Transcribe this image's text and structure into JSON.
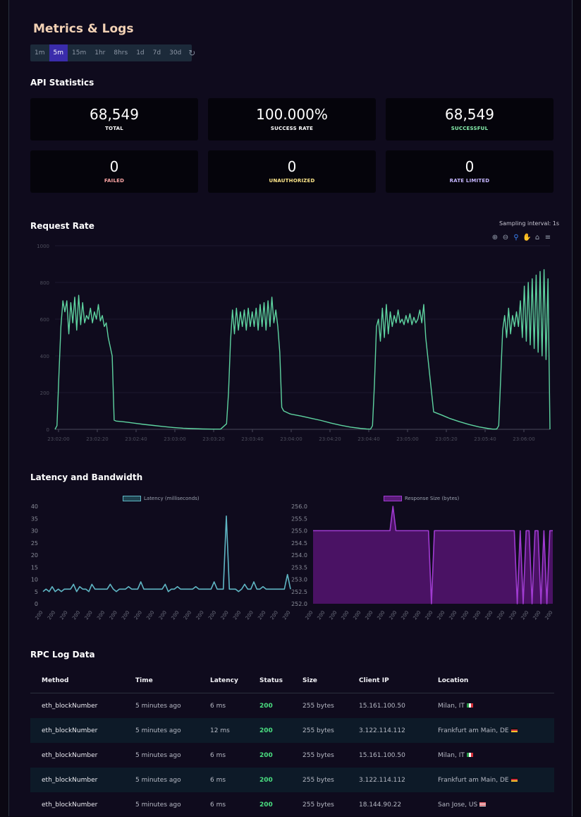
{
  "page": {
    "title": "Metrics & Logs"
  },
  "time_ranges": {
    "items": [
      "1m",
      "5m",
      "15m",
      "1hr",
      "8hrs",
      "1d",
      "7d",
      "30d"
    ],
    "selected": "5m"
  },
  "api_statistics": {
    "title": "API Statistics",
    "cards": [
      {
        "value": "68,549",
        "label": "TOTAL",
        "color": "#ffffff"
      },
      {
        "value": "100.000%",
        "label": "SUCCESS RATE",
        "color": "#ffffff"
      },
      {
        "value": "68,549",
        "label": "SUCCESSFUL",
        "color": "#86efac"
      },
      {
        "value": "0",
        "label": "FAILED",
        "color": "#fca5a5"
      },
      {
        "value": "0",
        "label": "UNAUTHORIZED",
        "color": "#fde68a"
      },
      {
        "value": "0",
        "label": "RATE LIMITED",
        "color": "#c4b5fd"
      }
    ]
  },
  "request_rate": {
    "title": "Request Rate",
    "sampling": "Sampling interval: 1s",
    "tools": [
      "zoom-in-icon",
      "zoom-out-icon",
      "zoom-select-icon",
      "pan-hand-icon",
      "home-icon",
      "menu-icon"
    ]
  },
  "latency_section": {
    "title": "Latency and Bandwidth"
  },
  "rpc_logs": {
    "title": "RPC Log Data",
    "columns": [
      "Method",
      "Time",
      "Latency",
      "Status",
      "Size",
      "Client IP",
      "Location"
    ],
    "rows": [
      {
        "method": "eth_blockNumber",
        "time": "5 minutes ago",
        "latency": "6 ms",
        "status": "200",
        "size": "255 bytes",
        "ip": "15.161.100.50",
        "location": "Milan, IT",
        "flag": "it"
      },
      {
        "method": "eth_blockNumber",
        "time": "5 minutes ago",
        "latency": "12 ms",
        "status": "200",
        "size": "255 bytes",
        "ip": "3.122.114.112",
        "location": "Frankfurt am Main, DE",
        "flag": "de"
      },
      {
        "method": "eth_blockNumber",
        "time": "5 minutes ago",
        "latency": "6 ms",
        "status": "200",
        "size": "255 bytes",
        "ip": "15.161.100.50",
        "location": "Milan, IT",
        "flag": "it"
      },
      {
        "method": "eth_blockNumber",
        "time": "5 minutes ago",
        "latency": "6 ms",
        "status": "200",
        "size": "255 bytes",
        "ip": "3.122.114.112",
        "location": "Frankfurt am Main, DE",
        "flag": "de"
      },
      {
        "method": "eth_blockNumber",
        "time": "5 minutes ago",
        "latency": "6 ms",
        "status": "200",
        "size": "255 bytes",
        "ip": "18.144.90.22",
        "location": "San Jose, US",
        "flag": "us"
      }
    ]
  },
  "chart_data": [
    {
      "type": "line",
      "title": "Request Rate",
      "ylim": [
        0,
        1000
      ],
      "yticks": [
        0,
        200,
        400,
        600,
        800,
        1000
      ],
      "xticks": [
        "23:02:00",
        "23:02:20",
        "23:02:40",
        "23:03:00",
        "23:03:20",
        "23:03:40",
        "23:04:00",
        "23:04:20",
        "23:04:40",
        "23:05:00",
        "23:05:20",
        "23:05:40",
        "23:06:00"
      ],
      "color": "#5ed3a0",
      "series": [
        {
          "x": [
            0,
            1,
            2,
            3,
            4,
            5,
            6,
            7,
            8,
            9,
            10,
            11,
            12,
            13,
            14,
            15,
            16,
            17,
            18,
            19,
            20,
            21,
            22,
            23,
            24,
            25,
            26,
            27,
            28,
            29,
            30,
            31,
            32,
            34,
            37,
            40,
            45,
            50,
            55,
            60,
            65,
            70,
            75,
            80,
            84,
            87,
            88,
            89,
            90,
            91,
            92,
            93,
            94,
            95,
            96,
            97,
            98,
            99,
            100,
            101,
            102,
            103,
            104,
            105,
            106,
            107,
            108,
            109,
            110,
            111,
            112,
            113,
            114,
            115,
            116,
            117,
            118,
            119,
            120,
            121,
            125,
            130,
            135,
            140,
            145,
            150,
            155,
            158,
            160,
            161,
            162,
            163,
            164,
            165,
            166,
            167,
            168,
            169,
            170,
            171,
            172,
            173,
            174,
            175,
            176,
            177,
            178,
            179,
            180,
            181,
            182,
            183,
            184,
            185,
            186,
            187,
            188,
            192,
            196,
            200,
            205,
            210,
            215,
            220,
            222,
            223,
            224,
            225,
            226,
            227,
            228,
            229,
            230,
            231,
            232,
            233,
            234,
            235,
            236,
            237,
            238,
            239,
            240,
            241,
            242,
            243,
            244,
            245,
            246,
            247,
            248,
            249,
            250,
            251
          ],
          "y": [
            0,
            20,
            300,
            560,
            700,
            640,
            700,
            520,
            690,
            580,
            720,
            540,
            730,
            570,
            690,
            580,
            620,
            600,
            660,
            580,
            640,
            600,
            680,
            590,
            620,
            560,
            580,
            500,
            450,
            400,
            50,
            45,
            44,
            42,
            38,
            34,
            27,
            21,
            15,
            10,
            6,
            4,
            2,
            1,
            1,
            30,
            200,
            480,
            650,
            520,
            660,
            540,
            640,
            560,
            650,
            540,
            660,
            560,
            640,
            560,
            660,
            540,
            680,
            560,
            690,
            540,
            700,
            560,
            720,
            580,
            650,
            560,
            420,
            120,
            100,
            95,
            90,
            85,
            82,
            80,
            72,
            60,
            48,
            34,
            22,
            12,
            5,
            2,
            1,
            20,
            250,
            560,
            600,
            480,
            660,
            500,
            680,
            520,
            640,
            560,
            620,
            580,
            650,
            580,
            600,
            570,
            620,
            580,
            630,
            570,
            610,
            580,
            600,
            650,
            580,
            680,
            500,
            95,
            78,
            60,
            42,
            26,
            13,
            4,
            1,
            1,
            2,
            20,
            280,
            540,
            620,
            500,
            660,
            520,
            620,
            560,
            640,
            560,
            700,
            500,
            780,
            480,
            800,
            460,
            820,
            440,
            840,
            420,
            860,
            400,
            870,
            380,
            820,
            0
          ]
        }
      ]
    },
    {
      "type": "area",
      "series_name": "Latency (milliseconds)",
      "ylim": [
        0,
        40
      ],
      "yticks": [
        0,
        5,
        10,
        15,
        20,
        25,
        30,
        35,
        40
      ],
      "xtick_label": "200",
      "xtick_count": 21,
      "color": "#5fb6c4",
      "values": [
        5,
        6,
        5,
        7,
        5,
        6,
        5,
        6,
        6,
        6,
        8,
        5,
        7,
        6,
        6,
        5,
        8,
        6,
        6,
        6,
        6,
        6,
        8,
        6,
        5,
        6,
        6,
        6,
        7,
        6,
        6,
        6,
        9,
        6,
        6,
        6,
        6,
        6,
        6,
        6,
        8,
        5,
        6,
        6,
        7,
        6,
        6,
        6,
        6,
        6,
        7,
        6,
        6,
        6,
        6,
        6,
        9,
        6,
        6,
        6,
        36,
        6,
        6,
        6,
        5,
        6,
        8,
        6,
        6,
        9,
        6,
        6,
        7,
        6,
        6,
        6,
        6,
        6,
        6,
        6,
        12,
        6
      ]
    },
    {
      "type": "area",
      "series_name": "Response Size (bytes)",
      "ylim": [
        252,
        256
      ],
      "yticks": [
        252.0,
        252.5,
        253.0,
        253.5,
        254.0,
        254.5,
        255.0,
        255.5,
        256.0
      ],
      "xtick_label": "200",
      "xtick_count": 21,
      "color": "#a03bd1",
      "values": [
        255,
        255,
        255,
        255,
        255,
        255,
        255,
        255,
        255,
        255,
        255,
        255,
        255,
        255,
        255,
        255,
        255,
        255,
        255,
        255,
        255,
        255,
        255,
        255,
        255,
        255,
        255,
        256,
        255,
        255,
        255,
        255,
        255,
        255,
        255,
        255,
        255,
        255,
        255,
        255,
        252,
        255,
        255,
        255,
        255,
        255,
        255,
        255,
        255,
        255,
        255,
        255,
        255,
        255,
        255,
        255,
        255,
        255,
        255,
        255,
        255,
        255,
        255,
        255,
        255,
        255,
        255,
        255,
        255,
        252,
        255,
        252,
        255,
        255,
        252,
        255,
        255,
        252,
        255,
        252,
        255,
        255
      ]
    }
  ]
}
